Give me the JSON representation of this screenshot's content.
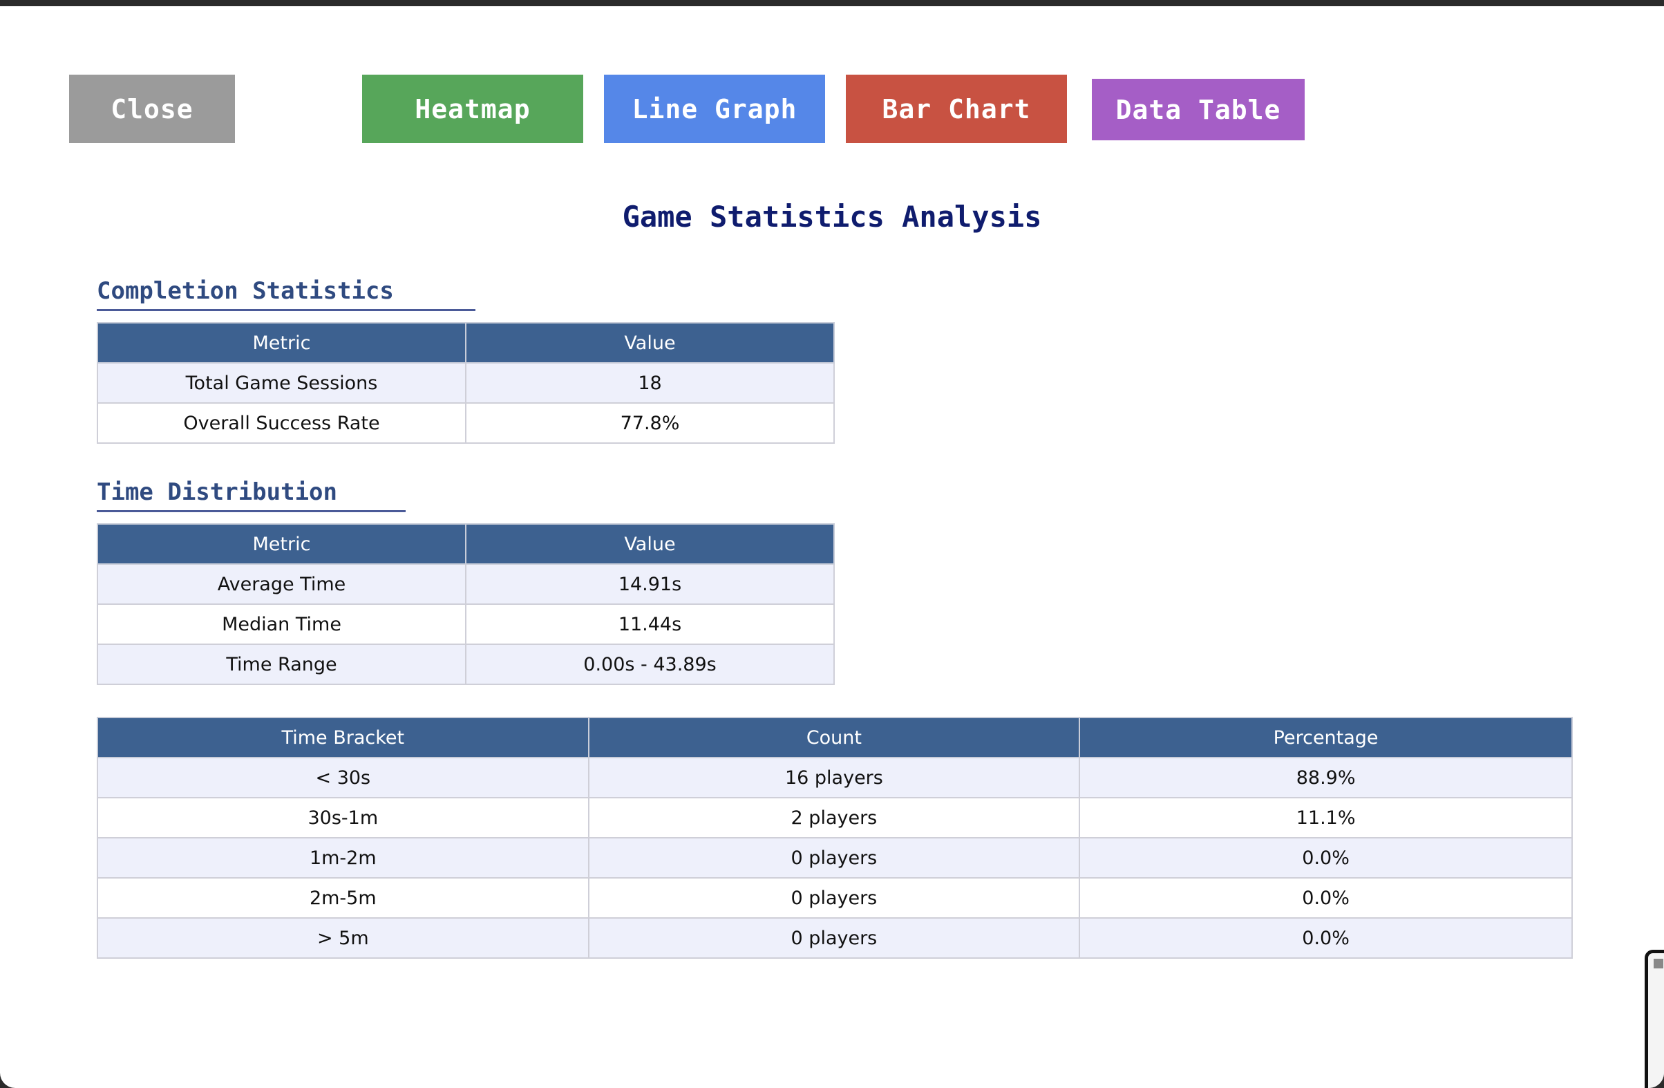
{
  "toolbar": {
    "close_label": "Close",
    "heatmap_label": "Heatmap",
    "line_graph_label": "Line Graph",
    "bar_chart_label": "Bar Chart",
    "data_table_label": "Data Table"
  },
  "colors": {
    "close": "#9b9b9b",
    "heatmap": "#57a65a",
    "line_graph": "#5587e8",
    "bar_chart": "#c85242",
    "data_table": "#a55ec6",
    "title": "#0f1c6e",
    "table_header": "#3d6190"
  },
  "title": "Game Statistics Analysis",
  "completion": {
    "heading": "Completion Statistics",
    "columns": [
      "Metric",
      "Value"
    ],
    "rows": [
      {
        "metric": "Total Game Sessions",
        "value": "18"
      },
      {
        "metric": "Overall Success Rate",
        "value": "77.8%"
      }
    ]
  },
  "time_distribution": {
    "heading": "Time Distribution",
    "columns": [
      "Metric",
      "Value"
    ],
    "rows": [
      {
        "metric": "Average Time",
        "value": "14.91s"
      },
      {
        "metric": "Median Time",
        "value": "11.44s"
      },
      {
        "metric": "Time Range",
        "value": "0.00s - 43.89s"
      }
    ]
  },
  "brackets": {
    "columns": [
      "Time Bracket",
      "Count",
      "Percentage"
    ],
    "rows": [
      {
        "bracket": "< 30s",
        "count": "16 players",
        "percentage": "88.9%"
      },
      {
        "bracket": "30s-1m",
        "count": "2 players",
        "percentage": "11.1%"
      },
      {
        "bracket": "1m-2m",
        "count": "0 players",
        "percentage": "0.0%"
      },
      {
        "bracket": "2m-5m",
        "count": "0 players",
        "percentage": "0.0%"
      },
      {
        "bracket": "> 5m",
        "count": "0 players",
        "percentage": "0.0%"
      }
    ]
  }
}
